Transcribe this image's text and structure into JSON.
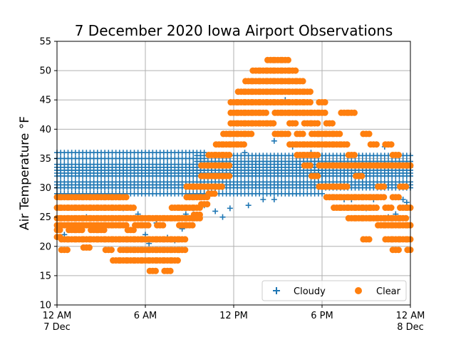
{
  "chart_data": {
    "type": "scatter",
    "title": "7 December 2020 Iowa Airport Observations",
    "xlabel": "",
    "ylabel": "Air Temperature °F",
    "xlim": [
      "2020-12-07 00:00",
      "2020-12-08 00:00"
    ],
    "ylim": [
      10,
      55
    ],
    "grid": true,
    "legend": {
      "placement": "lower-right",
      "columns": 2
    },
    "x_ticks": [
      {
        "line1": "12 AM",
        "line2": "7 Dec"
      },
      {
        "line1": "6 AM",
        "line2": ""
      },
      {
        "line1": "12 PM",
        "line2": ""
      },
      {
        "line1": "6 PM",
        "line2": ""
      },
      {
        "line1": "12 AM",
        "line2": "8 Dec"
      }
    ],
    "y_ticks": [
      "10",
      "15",
      "20",
      "25",
      "30",
      "35",
      "40",
      "45",
      "50",
      "55"
    ],
    "series": [
      {
        "name": "Cloudy",
        "marker": "plus",
        "color": "#1f77b4",
        "bands": [
          {
            "from": "2020-12-07 00:00",
            "to": "2020-12-07 10:00",
            "levels": [
              36,
              35,
              34,
              33.5,
              33,
              32.5,
              32,
              31,
              30.5,
              30,
              29
            ]
          },
          {
            "from": "2020-12-07 09:30",
            "to": "2020-12-07 18:00",
            "levels": [
              35.5,
              34.5,
              34,
              33.5,
              33,
              32.5,
              32,
              31,
              30.5,
              30,
              29
            ]
          },
          {
            "from": "2020-12-07 17:30",
            "to": "2020-12-08 00:00",
            "levels": [
              35.5,
              34.5,
              33.5,
              33,
              32.5,
              32,
              31,
              30.5,
              30
            ]
          }
        ],
        "points": [
          {
            "x": "2020-12-07 00:30",
            "y": 22
          },
          {
            "x": "2020-12-07 01:15",
            "y": 23
          },
          {
            "x": "2020-12-07 02:00",
            "y": 25
          },
          {
            "x": "2020-12-07 04:30",
            "y": 26.5
          },
          {
            "x": "2020-12-07 05:30",
            "y": 25.5
          },
          {
            "x": "2020-12-07 06:00",
            "y": 22
          },
          {
            "x": "2020-12-07 06:15",
            "y": 20.5
          },
          {
            "x": "2020-12-07 06:45",
            "y": 24
          },
          {
            "x": "2020-12-07 07:30",
            "y": 21.5
          },
          {
            "x": "2020-12-07 08:00",
            "y": 21
          },
          {
            "x": "2020-12-07 08:30",
            "y": 23
          },
          {
            "x": "2020-12-07 08:45",
            "y": 25.5
          },
          {
            "x": "2020-12-07 09:15",
            "y": 26.5
          },
          {
            "x": "2020-12-07 10:00",
            "y": 27
          },
          {
            "x": "2020-12-07 10:45",
            "y": 26
          },
          {
            "x": "2020-12-07 11:15",
            "y": 25
          },
          {
            "x": "2020-12-07 11:45",
            "y": 26.5
          },
          {
            "x": "2020-12-07 13:00",
            "y": 27
          },
          {
            "x": "2020-12-07 14:00",
            "y": 28
          },
          {
            "x": "2020-12-07 14:45",
            "y": 28
          },
          {
            "x": "2020-12-07 15:45",
            "y": 29
          },
          {
            "x": "2020-12-07 16:15",
            "y": 29
          },
          {
            "x": "2020-12-07 14:45",
            "y": 38
          },
          {
            "x": "2020-12-07 15:30",
            "y": 45
          },
          {
            "x": "2020-12-07 16:00",
            "y": 37
          },
          {
            "x": "2020-12-07 17:15",
            "y": 36
          },
          {
            "x": "2020-12-07 12:45",
            "y": 36
          },
          {
            "x": "2020-12-07 21:00",
            "y": 26.5
          },
          {
            "x": "2020-12-07 22:30",
            "y": 25
          },
          {
            "x": "2020-12-07 23:00",
            "y": 25.5
          },
          {
            "x": "2020-12-07 23:30",
            "y": 28
          },
          {
            "x": "2020-12-07 23:45",
            "y": 27.5
          },
          {
            "x": "2020-12-07 20:00",
            "y": 28
          },
          {
            "x": "2020-12-07 19:30",
            "y": 28
          },
          {
            "x": "2020-12-07 21:30",
            "y": 28
          },
          {
            "x": "2020-12-07 22:15",
            "y": 37
          }
        ]
      },
      {
        "name": "Clear",
        "marker": "circle",
        "color": "#ff7f0e",
        "hours": [
          0,
          0.5,
          1,
          1.5,
          2,
          2.5,
          3,
          3.5,
          4,
          4.5,
          5,
          5.5,
          6,
          6.5,
          7,
          7.5,
          8,
          8.5,
          9,
          9.5,
          10,
          10.5,
          11,
          11.5,
          12,
          12.5,
          13,
          13.5,
          14,
          14.5,
          15,
          15.5,
          16,
          16.5,
          17,
          17.5,
          18,
          18.5,
          19,
          19.5,
          20,
          20.5,
          21,
          21.5,
          22,
          22.5,
          23,
          23.5,
          24
        ],
        "columns": [
          [
            28.4,
            26.6,
            24.8,
            23.6,
            22.8,
            21.6
          ],
          [
            28.4,
            26.6,
            24.8,
            23.6,
            21.2,
            19.4
          ],
          [
            28.4,
            26.6,
            24.8,
            23.6,
            22.8,
            21.2
          ],
          [
            28.4,
            26.6,
            24.8,
            23.6,
            22.8,
            21.2
          ],
          [
            28.4,
            26.6,
            24.8,
            23.6,
            21.2,
            19.8
          ],
          [
            28.4,
            26.6,
            24.8,
            23.6,
            22.8,
            21.2
          ],
          [
            28.4,
            26.6,
            24.8,
            23.6,
            22.8,
            21.2
          ],
          [
            28.4,
            26.6,
            24.8,
            23.6,
            21.2,
            19.4
          ],
          [
            28.4,
            26.6,
            24.8,
            23.6,
            21.2,
            17.6
          ],
          [
            28.4,
            26.6,
            24.8,
            23.6,
            21.2,
            19.4,
            17.6
          ],
          [
            26.6,
            24.8,
            22.8,
            21.2,
            19.4,
            17.6
          ],
          [
            24.8,
            23.6,
            21.2,
            19.4,
            17.6
          ],
          [
            24.8,
            23.6,
            21.2,
            19.4,
            17.6
          ],
          [
            24.8,
            21.2,
            19.4,
            17.6,
            15.8
          ],
          [
            24.8,
            23.6,
            21.2,
            19.4,
            17.6
          ],
          [
            24.8,
            21.2,
            19.4,
            17.6,
            15.8
          ],
          [
            26.6,
            24.8,
            21.2,
            19.4,
            17.6
          ],
          [
            26.6,
            24.8,
            23.6,
            21.2,
            19.4
          ],
          [
            30.2,
            28.4,
            26.6,
            24.8,
            23.6
          ],
          [
            30.2,
            28.4,
            26.6,
            25.4,
            24.8
          ],
          [
            33.8,
            32.0,
            30.2,
            28.4,
            27.2
          ],
          [
            35.6,
            33.8,
            32.0,
            30.2,
            29.0
          ],
          [
            37.4,
            35.6,
            33.8,
            32.0,
            30.2
          ],
          [
            39.2,
            37.4,
            35.6,
            33.8,
            32.0
          ],
          [
            44.6,
            42.8,
            41.0,
            39.2,
            37.4
          ],
          [
            46.4,
            44.6,
            42.8,
            41.0,
            39.2,
            37.4
          ],
          [
            48.2,
            46.4,
            44.6,
            42.8,
            41.0,
            39.2
          ],
          [
            50.0,
            48.2,
            46.4,
            44.6,
            42.8,
            41.0
          ],
          [
            50.0,
            48.2,
            46.4,
            44.6,
            42.8,
            41.0
          ],
          [
            51.8,
            50.0,
            48.2,
            46.4,
            44.6,
            41.0
          ],
          [
            51.8,
            50.0,
            48.2,
            46.4,
            44.6,
            42.8,
            39.2
          ],
          [
            51.8,
            50.0,
            48.2,
            46.4,
            44.6,
            42.8,
            39.2
          ],
          [
            50.0,
            48.2,
            46.4,
            44.6,
            42.8,
            41.0,
            37.4
          ],
          [
            48.2,
            46.4,
            44.6,
            42.8,
            39.2,
            37.4,
            35.6
          ],
          [
            46.4,
            44.6,
            42.8,
            41.0,
            37.4,
            35.6,
            33.8
          ],
          [
            42.8,
            41.0,
            39.2,
            37.4,
            35.6,
            32.0
          ],
          [
            44.6,
            42.8,
            39.2,
            37.4,
            33.8,
            30.2
          ],
          [
            41.0,
            39.2,
            37.4,
            33.8,
            30.2,
            28.4
          ],
          [
            39.2,
            37.4,
            33.8,
            30.2,
            28.4,
            26.6
          ],
          [
            42.8,
            37.4,
            33.8,
            30.2,
            28.4,
            26.6
          ],
          [
            42.8,
            35.6,
            33.8,
            28.4,
            26.6,
            24.8
          ],
          [
            33.8,
            32.0,
            28.4,
            26.6,
            24.8
          ],
          [
            39.2,
            33.8,
            28.4,
            26.6,
            24.8,
            21.2
          ],
          [
            37.4,
            33.8,
            28.4,
            26.6,
            24.8
          ],
          [
            33.8,
            30.2,
            28.4,
            24.8,
            23.6
          ],
          [
            37.4,
            33.8,
            26.6,
            24.8,
            23.6,
            21.2
          ],
          [
            35.6,
            33.8,
            28.4,
            24.8,
            23.6,
            21.2,
            19.4
          ],
          [
            33.8,
            30.2,
            26.6,
            24.8,
            23.6,
            21.2
          ],
          [
            33.8,
            26.6,
            23.6,
            21.2,
            19.4
          ]
        ]
      }
    ]
  }
}
